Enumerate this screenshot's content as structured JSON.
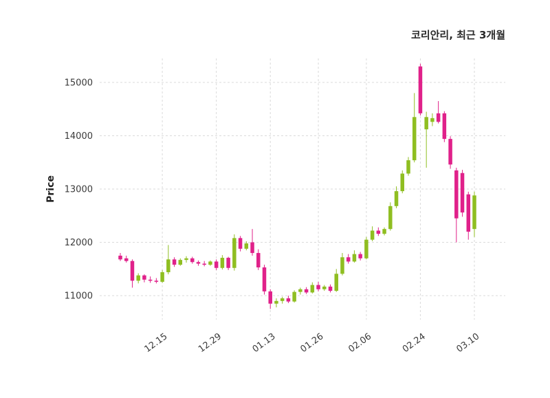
{
  "header": {
    "title": "코리안리, 최근 3개월"
  },
  "chart_data": {
    "type": "candlestick",
    "title": "코리안리, 최근 3개월",
    "xlabel": "",
    "ylabel": "Price",
    "ylim": [
      10550,
      15450
    ],
    "yticks": [
      11000,
      12000,
      13000,
      14000,
      15000
    ],
    "xticks": [
      {
        "index": 7,
        "label": "12.15"
      },
      {
        "index": 16,
        "label": "12.29"
      },
      {
        "index": 25,
        "label": "01.13"
      },
      {
        "index": 33,
        "label": "01.26"
      },
      {
        "index": 41,
        "label": "02.06"
      },
      {
        "index": 50,
        "label": "02.24"
      },
      {
        "index": 59,
        "label": "03.10"
      }
    ],
    "up_color": "#8fbe21",
    "down_color": "#e0218a",
    "grid": {
      "on": true,
      "style": "dashed",
      "color": "#dadada"
    },
    "legend_position": "none",
    "candles_format": [
      "open",
      "high",
      "low",
      "close"
    ],
    "candles": [
      [
        11750,
        11800,
        11650,
        11680
      ],
      [
        11700,
        11750,
        11620,
        11650
      ],
      [
        11650,
        11680,
        11150,
        11280
      ],
      [
        11280,
        11420,
        11230,
        11380
      ],
      [
        11380,
        11400,
        11250,
        11300
      ],
      [
        11300,
        11360,
        11240,
        11280
      ],
      [
        11280,
        11330,
        11230,
        11260
      ],
      [
        11260,
        11480,
        11240,
        11440
      ],
      [
        11440,
        11950,
        11400,
        11680
      ],
      [
        11680,
        11720,
        11540,
        11580
      ],
      [
        11580,
        11700,
        11560,
        11670
      ],
      [
        11670,
        11740,
        11620,
        11700
      ],
      [
        11700,
        11730,
        11600,
        11630
      ],
      [
        11630,
        11660,
        11560,
        11600
      ],
      [
        11600,
        11650,
        11550,
        11580
      ],
      [
        11580,
        11660,
        11560,
        11640
      ],
      [
        11640,
        11680,
        11480,
        11520
      ],
      [
        11520,
        11760,
        11490,
        11710
      ],
      [
        11710,
        11730,
        11480,
        11520
      ],
      [
        11520,
        12150,
        11470,
        12080
      ],
      [
        12080,
        12120,
        11830,
        11880
      ],
      [
        11880,
        12020,
        11850,
        11980
      ],
      [
        12000,
        12250,
        11750,
        11800
      ],
      [
        11800,
        11870,
        11480,
        11530
      ],
      [
        11530,
        11580,
        11020,
        11080
      ],
      [
        11080,
        11120,
        10750,
        10850
      ],
      [
        10850,
        10950,
        10780,
        10900
      ],
      [
        10900,
        10980,
        10850,
        10950
      ],
      [
        10950,
        11000,
        10860,
        10890
      ],
      [
        10890,
        11100,
        10870,
        11070
      ],
      [
        11070,
        11150,
        11020,
        11120
      ],
      [
        11120,
        11160,
        11030,
        11060
      ],
      [
        11060,
        11250,
        11040,
        11200
      ],
      [
        11200,
        11260,
        11080,
        11120
      ],
      [
        11120,
        11200,
        11090,
        11170
      ],
      [
        11170,
        11210,
        11060,
        11090
      ],
      [
        11090,
        11500,
        11070,
        11410
      ],
      [
        11410,
        11800,
        11380,
        11720
      ],
      [
        11720,
        11780,
        11600,
        11640
      ],
      [
        11640,
        11850,
        11620,
        11780
      ],
      [
        11780,
        11820,
        11660,
        11700
      ],
      [
        11700,
        12100,
        11680,
        12050
      ],
      [
        12050,
        12300,
        12020,
        12220
      ],
      [
        12220,
        12280,
        12120,
        12160
      ],
      [
        12160,
        12280,
        12130,
        12250
      ],
      [
        12250,
        12750,
        12220,
        12680
      ],
      [
        12680,
        13050,
        12640,
        12960
      ],
      [
        12960,
        13350,
        12920,
        13290
      ],
      [
        13290,
        13600,
        13250,
        13540
      ],
      [
        13540,
        14800,
        13500,
        14350
      ],
      [
        15300,
        15350,
        14380,
        14420
      ],
      [
        14120,
        14450,
        13400,
        14350
      ],
      [
        14260,
        14420,
        14180,
        14330
      ],
      [
        14420,
        14650,
        14230,
        14260
      ],
      [
        14420,
        14460,
        13880,
        13940
      ],
      [
        13940,
        13990,
        13380,
        13460
      ],
      [
        13350,
        13400,
        12000,
        12450
      ],
      [
        13300,
        13360,
        12480,
        12560
      ],
      [
        12900,
        12950,
        12050,
        12200
      ],
      [
        12250,
        12950,
        12100,
        12880
      ]
    ]
  }
}
